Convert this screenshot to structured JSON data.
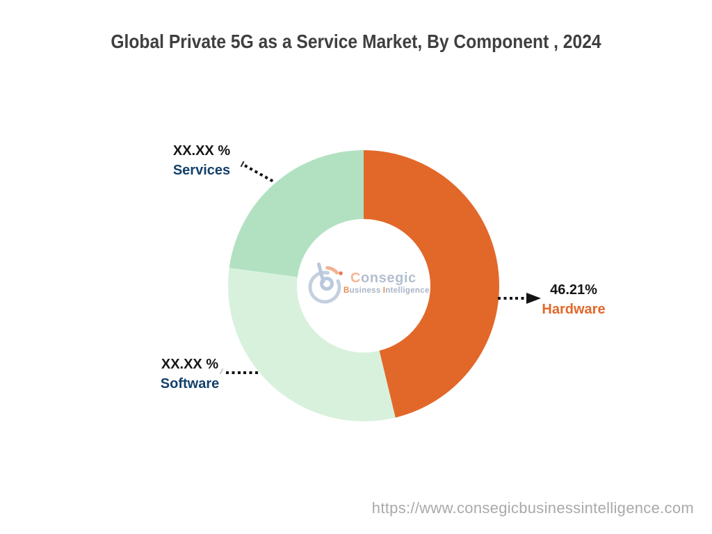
{
  "header": {
    "title": "Global Private 5G as a Service Market, By Component , 2024",
    "title_color": "#3F3F3F"
  },
  "chart_data": {
    "type": "pie",
    "subtype": "donut",
    "title": "Global Private 5G as a Service Market, By Component , 2024",
    "start_angle_deg": 0,
    "direction": "clockwise",
    "inner_radius_ratio": 0.49,
    "legend": "none",
    "annotation_style": "dotted-leader-lines",
    "segments": [
      {
        "label": "Hardware",
        "display_value": "46.21%",
        "arc_pct": 46.21,
        "color": "#E2682A",
        "label_color": "#E2682A"
      },
      {
        "label": "Software",
        "display_value": "XX.XX %",
        "arc_pct": 30.87,
        "color": "#D8F1DD",
        "label_color": "#14406B"
      },
      {
        "label": "Services",
        "display_value": "XX.XX %",
        "arc_pct": 22.92,
        "color": "#B2E1C2",
        "label_color": "#14406B"
      }
    ]
  },
  "watermark": {
    "brand_first": "C",
    "brand_rest": "onsegic",
    "tagline_b": "B",
    "tagline_usiness": "usiness",
    "tagline_i": "I",
    "tagline_rest": "ntelligence"
  },
  "footer": {
    "url": "https://www.consegicbusinessintelligence.com",
    "color": "#A9A9A9"
  }
}
